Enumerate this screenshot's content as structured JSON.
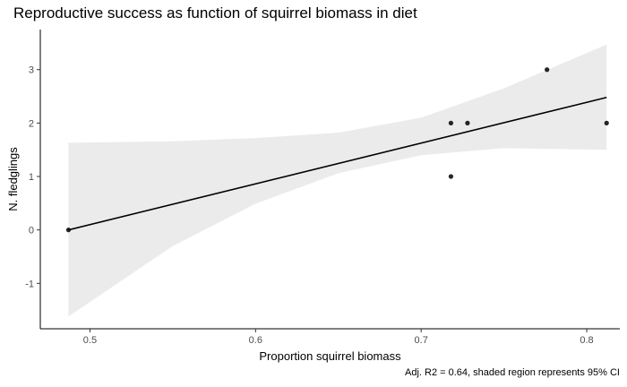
{
  "chart_data": {
    "type": "scatter",
    "title": "Reproductive success as function of squirrel biomass in diet",
    "caption": "Adj. R2 = 0.64, shaded region represents 95% CI",
    "xlabel": "Proportion squirrel biomass",
    "ylabel": "N. fledglings",
    "xlim": [
      0.47,
      0.82
    ],
    "ylim": [
      -1.85,
      3.75
    ],
    "x_ticks": [
      0.5,
      0.6,
      0.7,
      0.8
    ],
    "x_tick_labels": [
      "0.5",
      "0.6",
      "0.7",
      "0.8"
    ],
    "y_ticks": [
      -1,
      0,
      1,
      2,
      3
    ],
    "y_tick_labels": [
      "-1",
      "0",
      "1",
      "2",
      "3"
    ],
    "grid": false,
    "points": [
      {
        "x": 0.487,
        "y": 0
      },
      {
        "x": 0.718,
        "y": 1
      },
      {
        "x": 0.718,
        "y": 2
      },
      {
        "x": 0.728,
        "y": 2
      },
      {
        "x": 0.776,
        "y": 3
      },
      {
        "x": 0.812,
        "y": 2
      }
    ],
    "fit_line": {
      "x": [
        0.487,
        0.812
      ],
      "y": [
        0.0,
        2.48
      ]
    },
    "confidence_band": {
      "x": [
        0.487,
        0.55,
        0.6,
        0.65,
        0.7,
        0.75,
        0.812
      ],
      "lower": [
        -1.62,
        -0.3,
        0.49,
        1.06,
        1.4,
        1.53,
        1.5
      ],
      "upper": [
        1.63,
        1.66,
        1.72,
        1.82,
        2.1,
        2.65,
        3.47
      ]
    },
    "colors": {
      "points": "#000000",
      "line": "#000000",
      "band": "#ebebeb",
      "axis": "#000000",
      "tick_text": "#4d4d4d"
    }
  }
}
